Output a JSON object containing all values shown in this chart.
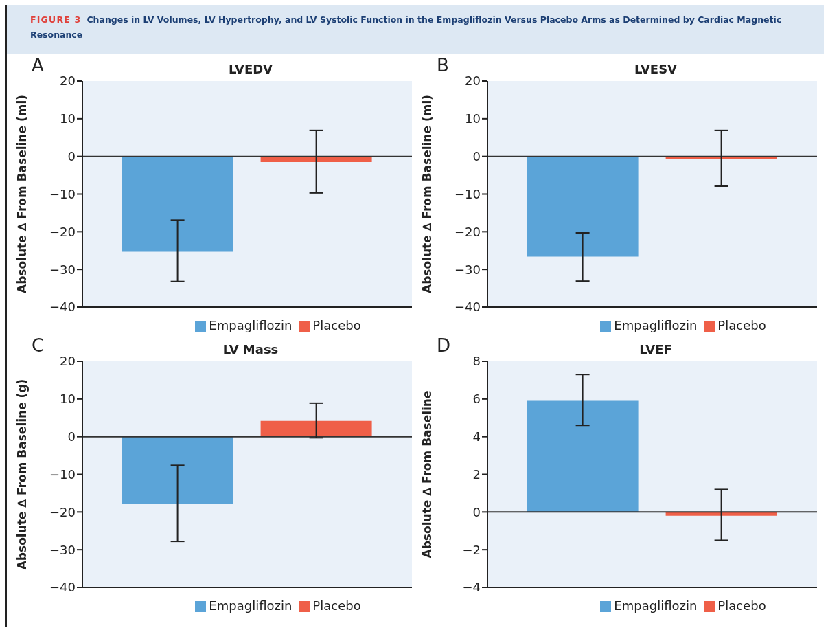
{
  "chart_data": [
    {
      "type": "bar",
      "title": "LVEDV",
      "ylabel": "Absolute ∆ From Baseline (ml)",
      "annotations": [
        "A",
        "FIGURE 3",
        "Changes in LV Volumes, LV Hypertrophy, and LV Systolic Function in the Empagliflozin Versus Placebo Arms as Determined by Cardiac Magnetic Resonance"
      ],
      "categories": [
        null
      ],
      "series": [
        {
          "name": "Empagliflozin",
          "color": "#5ba4d8",
          "values": [
            -25.3
          ],
          "errors": [
            [
              -33.2,
              -16.9
            ]
          ]
        },
        {
          "name": "Placebo",
          "color": "#ef5f48",
          "values": [
            -1.5
          ],
          "errors": [
            [
              -9.7,
              6.9
            ]
          ]
        }
      ],
      "ylim": [
        -40,
        20
      ],
      "yticks": [
        -40,
        -30,
        -20,
        -10,
        0,
        10,
        20
      ],
      "ref_lines": [
        {
          "axis": "y",
          "value": 0
        }
      ],
      "legend": "bottom",
      "tick_labels": "y"
    },
    {
      "type": "bar",
      "title": "LVESV",
      "ylabel": "Absolute ∆ From Baseline (ml)",
      "annotations": [
        "B"
      ],
      "categories": [
        null
      ],
      "series": [
        {
          "name": "Empagliflozin",
          "color": "#5ba4d8",
          "values": [
            -26.6
          ],
          "errors": [
            [
              -33.1,
              -20.3
            ]
          ]
        },
        {
          "name": "Placebo",
          "color": "#ef5f48",
          "values": [
            -0.6
          ],
          "errors": [
            [
              -7.9,
              6.9
            ]
          ]
        }
      ],
      "ylim": [
        -40,
        20
      ],
      "yticks": [
        -40,
        -30,
        -20,
        -10,
        0,
        10,
        20
      ],
      "ref_lines": [
        {
          "axis": "y",
          "value": 0
        }
      ],
      "legend": "bottom",
      "tick_labels": "y"
    },
    {
      "type": "bar",
      "title": "LV Mass",
      "ylabel": "Absolute ∆ From Baseline (g)",
      "annotations": [
        "C"
      ],
      "categories": [
        null
      ],
      "series": [
        {
          "name": "Empagliflozin",
          "color": "#5ba4d8",
          "values": [
            -17.9
          ],
          "errors": [
            [
              -27.8,
              -7.6
            ]
          ]
        },
        {
          "name": "Placebo",
          "color": "#ef5f48",
          "values": [
            4.2
          ],
          "errors": [
            [
              -0.3,
              8.9
            ]
          ]
        }
      ],
      "ylim": [
        -40,
        20
      ],
      "yticks": [
        -40,
        -30,
        -20,
        -10,
        0,
        10,
        20
      ],
      "ref_lines": [
        {
          "axis": "y",
          "value": 0
        }
      ],
      "legend": "bottom",
      "tick_labels": "y"
    },
    {
      "type": "bar",
      "title": "LVEF",
      "ylabel": "Absolute ∆ From Baseline",
      "annotations": [
        "D"
      ],
      "categories": [
        null
      ],
      "series": [
        {
          "name": "Empagliflozin",
          "color": "#5ba4d8",
          "values": [
            5.9
          ],
          "errors": [
            [
              4.6,
              7.3
            ]
          ]
        },
        {
          "name": "Placebo",
          "color": "#ef5f48",
          "values": [
            -0.2
          ],
          "errors": [
            [
              -1.5,
              1.2
            ]
          ]
        }
      ],
      "ylim": [
        -4,
        8
      ],
      "yticks": [
        -4,
        -2,
        0,
        2,
        4,
        6,
        8
      ],
      "ref_lines": [
        {
          "axis": "y",
          "value": 0
        }
      ],
      "legend": "bottom",
      "tick_labels": "y"
    }
  ]
}
